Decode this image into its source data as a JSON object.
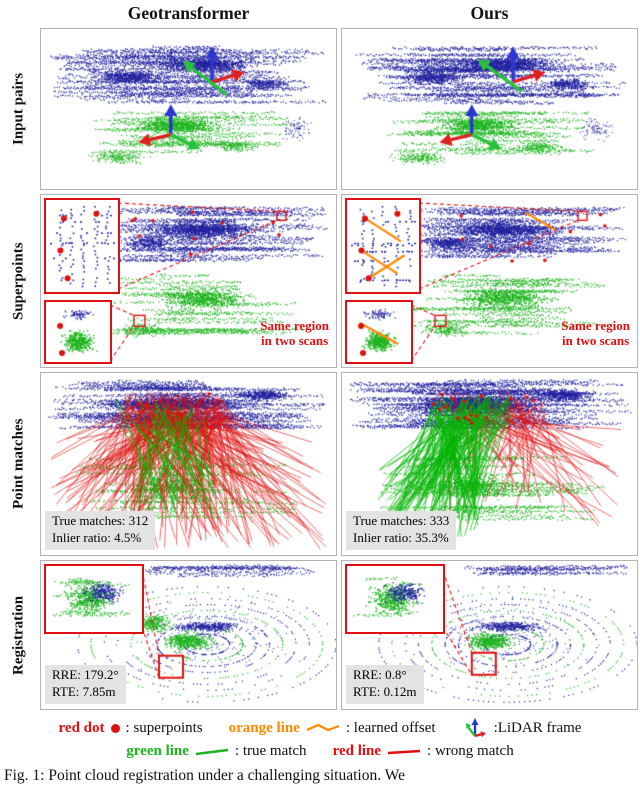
{
  "columns": {
    "left": "Geotransformer",
    "right": "Ours"
  },
  "rows": {
    "input": {
      "label": "Input pairs"
    },
    "superpoints": {
      "label": "Superpoints",
      "note_line1": "Same region",
      "note_line2": "in two scans"
    },
    "matches": {
      "label": "Point matches",
      "left": {
        "line1": "True matches: 312",
        "line2": "Inlier ratio: 4.5%"
      },
      "right": {
        "line1": "True matches: 333",
        "line2": "Inlier ratio: 35.3%"
      }
    },
    "registration": {
      "label": "Registration",
      "left": {
        "line1": "RRE: 179.2°",
        "line2": "RTE: 7.85m"
      },
      "right": {
        "line1": "RRE: 0.8°",
        "line2": "RTE: 0.12m"
      }
    }
  },
  "legend": {
    "red_dot_label": "red dot",
    "red_dot_desc": ": superpoints",
    "orange_line_label": "orange line",
    "orange_line_desc": ": learned offset",
    "lidar_desc": ":LiDAR frame",
    "green_line_label": "green line",
    "green_line_desc": ": true match",
    "red_line_label": "red line",
    "red_line_desc": ": wrong match"
  },
  "caption": "Fig. 1: Point cloud registration under a challenging situation. We",
  "colors": {
    "blue": "#2222a0",
    "green": "#1db41d",
    "red": "#e01010",
    "orange": "#ff8800"
  }
}
